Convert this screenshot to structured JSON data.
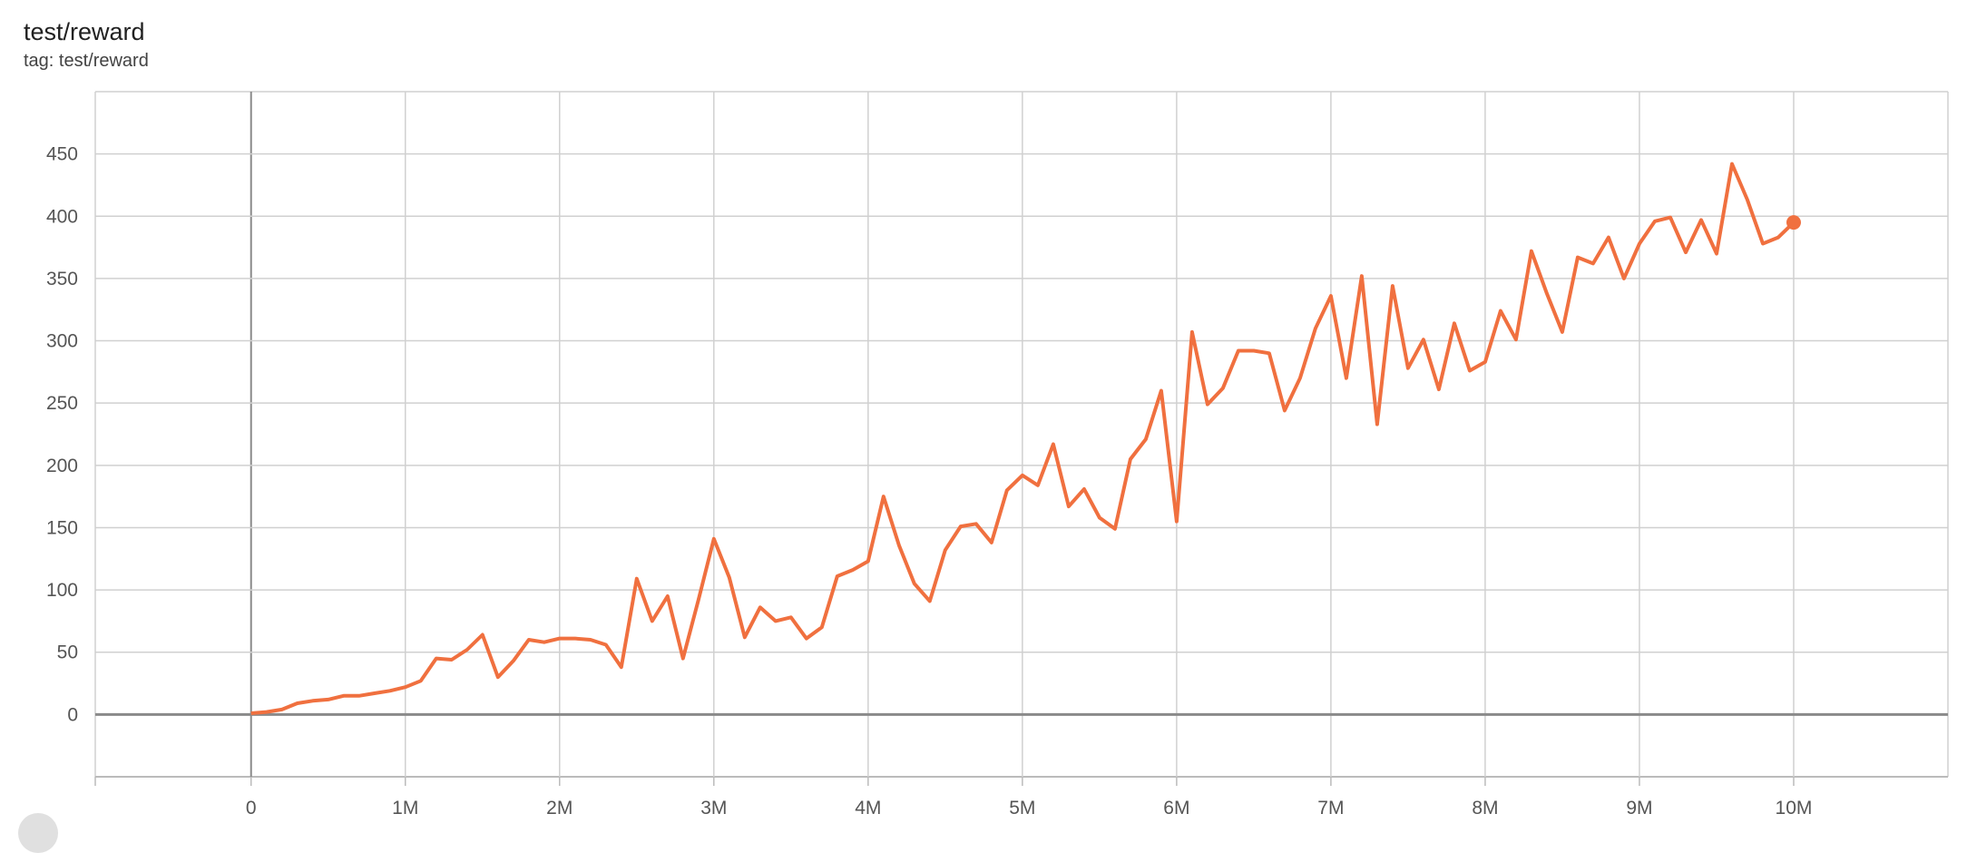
{
  "card": {
    "title": "test/reward",
    "tag": "tag: test/reward"
  },
  "chart_data": {
    "type": "line",
    "title": "test/reward",
    "xlabel": "",
    "ylabel": "",
    "xlim": [
      -1010000,
      11000000
    ],
    "ylim": [
      -50,
      500
    ],
    "grid": true,
    "x_ticks": [
      0,
      1000000,
      2000000,
      3000000,
      4000000,
      5000000,
      6000000,
      7000000,
      8000000,
      9000000,
      10000000
    ],
    "x_tick_labels": [
      "0",
      "1M",
      "2M",
      "3M",
      "4M",
      "5M",
      "6M",
      "7M",
      "8M",
      "9M",
      "10M"
    ],
    "y_ticks": [
      0,
      50,
      100,
      150,
      200,
      250,
      300,
      350,
      400,
      450
    ],
    "y_tick_labels": [
      "0",
      "50",
      "100",
      "150",
      "200",
      "250",
      "300",
      "350",
      "400",
      "450"
    ],
    "colors": {
      "line": "#f0703f",
      "grid": "#d0d0d0",
      "axis": "#8a8a8a"
    },
    "series": [
      {
        "x_step": 100000,
        "values": [
          1,
          2,
          4,
          9,
          11,
          12,
          15,
          15,
          17,
          19,
          22,
          27,
          45,
          44,
          52,
          64,
          30,
          43,
          60,
          58,
          61,
          61,
          60,
          56,
          38,
          109,
          75,
          95,
          45,
          92,
          141,
          110,
          62,
          86,
          75,
          78,
          61,
          70,
          111,
          116,
          123,
          175,
          136,
          105,
          91,
          132,
          151,
          153,
          138,
          180,
          192,
          184,
          217,
          167,
          181,
          158,
          149,
          205,
          221,
          260,
          155,
          307,
          249,
          262,
          292,
          292,
          290,
          244,
          270,
          310,
          336,
          270,
          352,
          233,
          344,
          278,
          301,
          261,
          314,
          276,
          283,
          324,
          301,
          372,
          338,
          307,
          367,
          362,
          383,
          350,
          378,
          396,
          399,
          371,
          397,
          370,
          442,
          413,
          378,
          383,
          395
        ]
      }
    ]
  }
}
